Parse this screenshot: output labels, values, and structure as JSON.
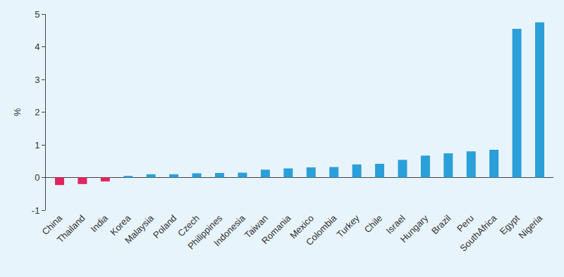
{
  "chart_data": {
    "type": "bar",
    "y_label": "%",
    "categories": [
      "China",
      "Thailand",
      "India",
      "Korea",
      "Malaysia",
      "Poland",
      "Czech",
      "Philippines",
      "Indonesia",
      "Taiwan",
      "Romania",
      "Mexico",
      "Colombia",
      "Turkey",
      "Chile",
      "Israel",
      "Hungary",
      "Brazil",
      "Peru",
      "SouthAfrica",
      "Egypt",
      "Nigeria"
    ],
    "values": [
      -0.23,
      -0.2,
      -0.12,
      0.05,
      0.1,
      0.1,
      0.13,
      0.14,
      0.15,
      0.24,
      0.28,
      0.31,
      0.32,
      0.4,
      0.42,
      0.54,
      0.67,
      0.74,
      0.8,
      0.85,
      4.55,
      4.75
    ],
    "colors": [
      "#e0245e",
      "#e0245e",
      "#e0245e",
      "#2b9fd9",
      "#2b9fd9",
      "#2b9fd9",
      "#2b9fd9",
      "#2b9fd9",
      "#2b9fd9",
      "#2b9fd9",
      "#2b9fd9",
      "#2b9fd9",
      "#2b9fd9",
      "#2b9fd9",
      "#2b9fd9",
      "#2b9fd9",
      "#2b9fd9",
      "#2b9fd9",
      "#2b9fd9",
      "#2b9fd9",
      "#2b9fd9",
      "#2b9fd9"
    ],
    "ylim": [
      -1,
      5
    ],
    "yticks": [
      -1,
      0,
      1,
      2,
      3,
      4,
      5
    ],
    "grid": false
  }
}
